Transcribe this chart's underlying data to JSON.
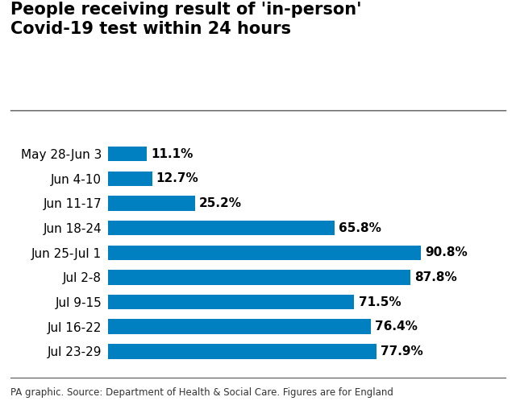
{
  "title_line1": "People receiving result of 'in-person'",
  "title_line2": "Covid-19 test within 24 hours",
  "categories": [
    "May 28-Jun 3",
    "Jun 4-10",
    "Jun 11-17",
    "Jun 18-24",
    "Jun 25-Jul 1",
    "Jul 2-8",
    "Jul 9-15",
    "Jul 16-22",
    "Jul 23-29"
  ],
  "values": [
    11.1,
    12.7,
    25.2,
    65.8,
    90.8,
    87.8,
    71.5,
    76.4,
    77.9
  ],
  "labels": [
    "11.1%",
    "12.7%",
    "25.2%",
    "65.8%",
    "90.8%",
    "87.8%",
    "71.5%",
    "76.4%",
    "77.9%"
  ],
  "bar_color": "#0080C0",
  "background_color": "#ffffff",
  "title_fontsize": 15,
  "label_fontsize": 11,
  "tick_fontsize": 11,
  "footnote": "PA graphic. Source: Department of Health & Social Care. Figures are for England",
  "footnote_fontsize": 8.5,
  "xlim": [
    0,
    105
  ]
}
